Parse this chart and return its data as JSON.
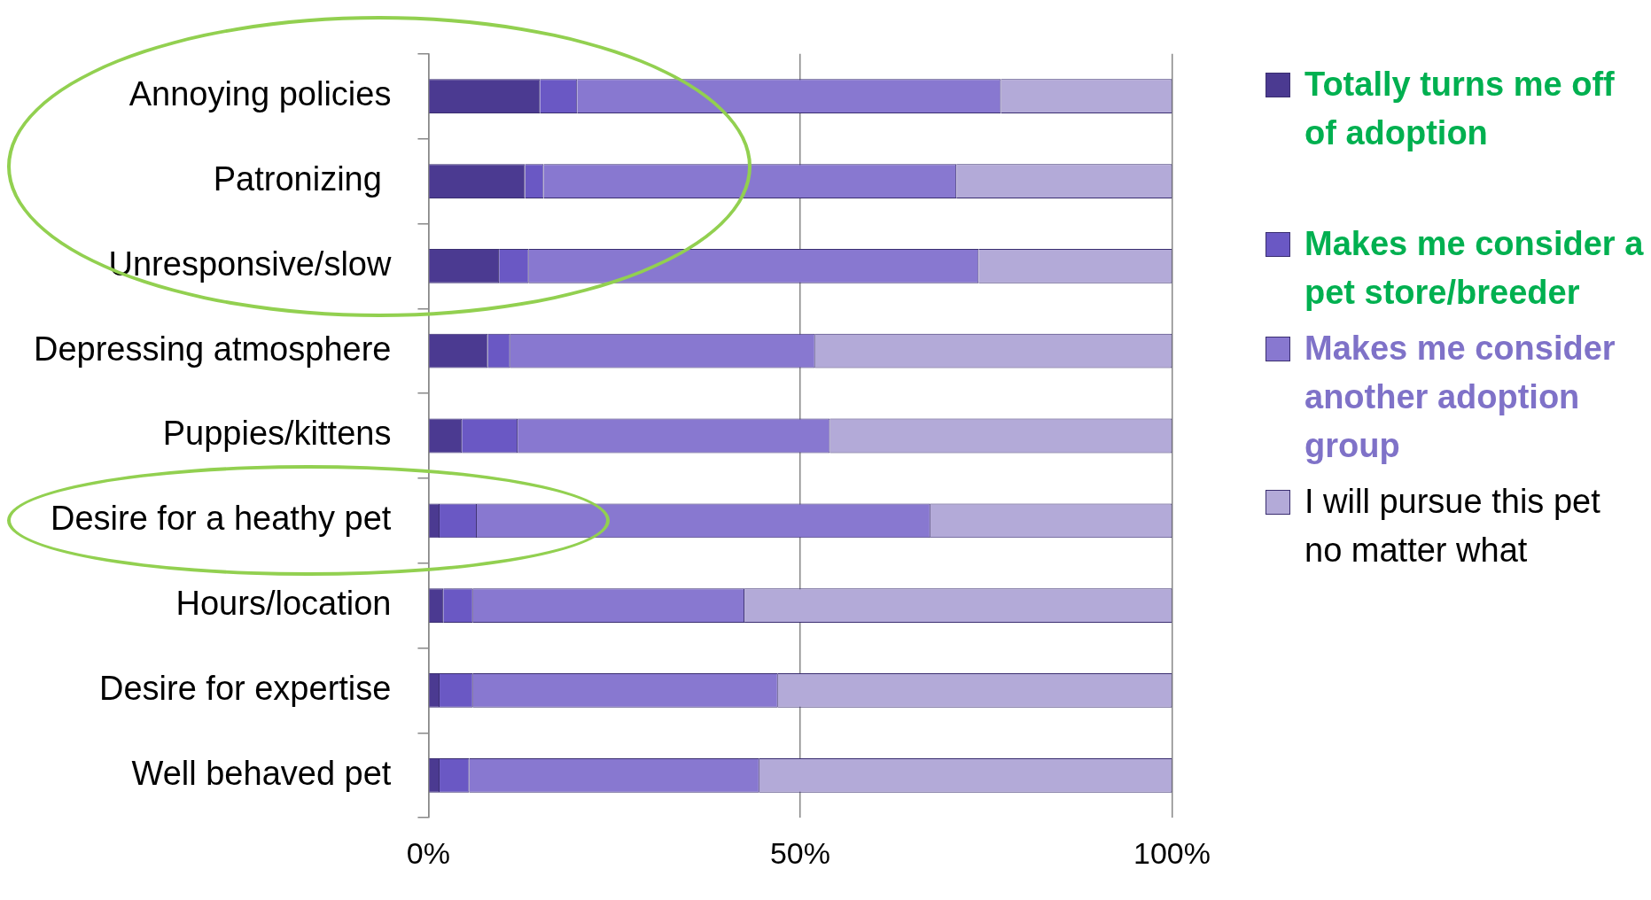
{
  "chart_data": {
    "type": "bar",
    "orientation": "horizontal",
    "stacked": true,
    "categories": [
      "Annoying policies",
      "Patronizing ",
      "Unresponsive/slow",
      "Depressing atmosphere",
      "Puppies/kittens",
      "Desire for a heathy pet",
      "Hours/location",
      "Desire for expertise",
      "Well behaved pet"
    ],
    "series": [
      {
        "name": "Totally turns me off of adoption",
        "color": "#4b3a91",
        "values": [
          15,
          13,
          9.5,
          8,
          4.5,
          1.5,
          2,
          1.5,
          1.5
        ]
      },
      {
        "name": "Makes me consider a pet store/breeder",
        "color": "#6a58c4",
        "values": [
          5,
          2.5,
          4,
          3,
          7.5,
          5,
          4,
          4.5,
          4
        ]
      },
      {
        "name": "Makes me consider another adoption group",
        "color": "#8878d0",
        "values": [
          57,
          55.5,
          60.5,
          41,
          42,
          61,
          36.5,
          41,
          39
        ]
      },
      {
        "name": "I will pursue this pet no matter what",
        "color": "#b3aad8",
        "values": [
          23,
          29,
          26,
          48,
          46,
          32.5,
          57.5,
          53,
          55.5
        ]
      }
    ],
    "xlim": [
      0,
      100
    ],
    "xticks": [
      {
        "value": 0,
        "label": "0%"
      },
      {
        "value": 50,
        "label": "50%"
      },
      {
        "value": 100,
        "label": "100%"
      }
    ],
    "grid": "x",
    "legend": "right"
  }
}
